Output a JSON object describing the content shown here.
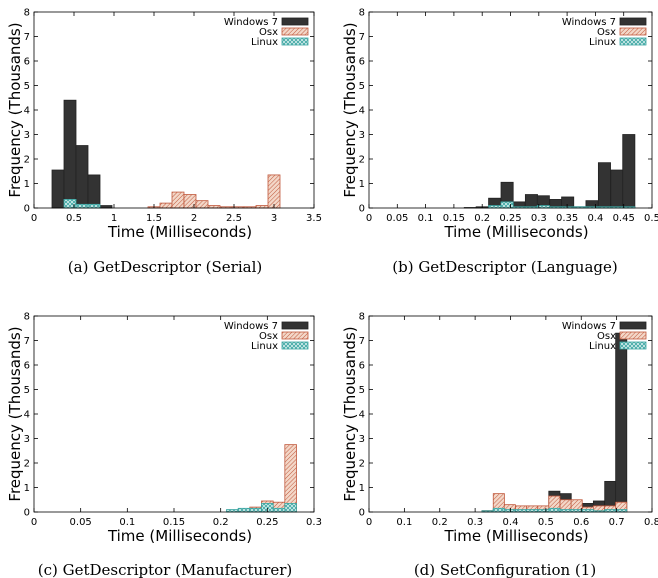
{
  "legend_labels": [
    "Windows 7",
    "Osx",
    "Linux"
  ],
  "colors": {
    "windows": "#333333",
    "osx": "#c0583c",
    "osx_fill": "#f3d7c8",
    "linux": "#3aa5a1",
    "linux_fill": "#d8efee"
  },
  "chart_data": [
    {
      "type": "bar",
      "caption": "(a) GetDescriptor (Serial)",
      "xlabel": "Time (Milliseconds)",
      "ylabel": "Frequency (Thousands)",
      "xlim": [
        0,
        3.5
      ],
      "ylim": [
        0,
        8
      ],
      "xticks": [
        "0",
        "0.5",
        "1",
        "1.5",
        "2",
        "2.5",
        "3",
        "3.5"
      ],
      "yticks": [
        "0",
        "1",
        "2",
        "3",
        "4",
        "5",
        "6",
        "7",
        "8"
      ],
      "legend": "top-right",
      "bin_width": 0.15,
      "series": [
        {
          "name": "Windows 7",
          "x": [
            0.3,
            0.45,
            0.6,
            0.75,
            0.9
          ],
          "values": [
            1.55,
            4.4,
            2.55,
            1.35,
            0.1
          ]
        },
        {
          "name": "Osx",
          "x": [
            1.5,
            1.65,
            1.8,
            1.95,
            2.1,
            2.25,
            2.4,
            2.55,
            2.7,
            2.85,
            3.0
          ],
          "values": [
            0.05,
            0.2,
            0.65,
            0.55,
            0.3,
            0.1,
            0.05,
            0.05,
            0.05,
            0.1,
            1.35
          ]
        },
        {
          "name": "Linux",
          "x": [
            0.45,
            0.6,
            0.75
          ],
          "values": [
            0.35,
            0.15,
            0.15
          ]
        }
      ]
    },
    {
      "type": "bar",
      "caption": "(b) GetDescriptor (Language)",
      "xlabel": "Time (Milliseconds)",
      "ylabel": "Frequency (Thousands)",
      "xlim": [
        0,
        0.5
      ],
      "ylim": [
        0,
        8
      ],
      "xticks": [
        "0",
        "0.05",
        "0.1",
        "0.15",
        "0.2",
        "0.25",
        "0.3",
        "0.35",
        "0.4",
        "0.45",
        "0.5"
      ],
      "yticks": [
        "0",
        "1",
        "2",
        "3",
        "4",
        "5",
        "6",
        "7",
        "8"
      ],
      "legend": "top-right",
      "bin_width": 0.0215,
      "series": [
        {
          "name": "Windows 7",
          "x": [
            0.179,
            0.2,
            0.222,
            0.244,
            0.265,
            0.287,
            0.308,
            0.33,
            0.351,
            0.373,
            0.394,
            0.416,
            0.438,
            0.459
          ],
          "values": [
            0.02,
            0.05,
            0.4,
            1.05,
            0.25,
            0.55,
            0.5,
            0.35,
            0.45,
            0.05,
            0.3,
            1.85,
            1.55,
            3.0
          ]
        },
        {
          "name": "Osx",
          "x": [],
          "values": []
        },
        {
          "name": "Linux",
          "x": [
            0.222,
            0.244,
            0.265,
            0.287,
            0.308,
            0.33,
            0.351,
            0.373,
            0.394,
            0.416,
            0.438,
            0.459
          ],
          "values": [
            0.1,
            0.25,
            0.05,
            0.05,
            0.1,
            0.05,
            0.05,
            0.05,
            0.05,
            0.05,
            0.05,
            0.05
          ]
        }
      ]
    },
    {
      "type": "bar",
      "caption": "(c) GetDescriptor (Manufacturer)",
      "xlabel": "Time (Milliseconds)",
      "ylabel": "Frequency (Thousands)",
      "xlim": [
        0,
        0.3
      ],
      "ylim": [
        0,
        8
      ],
      "xticks": [
        "0",
        "0.05",
        "0.1",
        "0.15",
        "0.2",
        "0.25",
        "0.3"
      ],
      "yticks": [
        "0",
        "1",
        "2",
        "3",
        "4",
        "5",
        "6",
        "7",
        "8"
      ],
      "legend": "top-right",
      "bin_width": 0.0125,
      "series": [
        {
          "name": "Windows 7",
          "x": [],
          "values": []
        },
        {
          "name": "Osx",
          "x": [
            0.225,
            0.2375,
            0.25,
            0.2625,
            0.275
          ],
          "values": [
            0.05,
            0.2,
            0.45,
            0.4,
            2.75
          ]
        },
        {
          "name": "Linux",
          "x": [
            0.2125,
            0.225,
            0.2375,
            0.25,
            0.2625,
            0.275
          ],
          "values": [
            0.1,
            0.15,
            0.15,
            0.35,
            0.15,
            0.35
          ]
        }
      ]
    },
    {
      "type": "bar",
      "caption": "(d) SetConfiguration (1)",
      "xlabel": "Time (Milliseconds)",
      "ylabel": "Frequency (Thousands)",
      "xlim": [
        0,
        0.8
      ],
      "ylim": [
        0,
        8
      ],
      "xticks": [
        "0",
        "0.1",
        "0.2",
        "0.3",
        "0.4",
        "0.5",
        "0.6",
        "0.7",
        "0.8"
      ],
      "yticks": [
        "0",
        "1",
        "2",
        "3",
        "4",
        "5",
        "6",
        "7",
        "8"
      ],
      "legend": "top-right",
      "bin_width": 0.0315,
      "series": [
        {
          "name": "Windows 7",
          "x": [
            0.335,
            0.367,
            0.398,
            0.43,
            0.461,
            0.493,
            0.524,
            0.556,
            0.587,
            0.619,
            0.65,
            0.682,
            0.713
          ],
          "values": [
            0.05,
            0.1,
            0.1,
            0.05,
            0.05,
            0.1,
            0.85,
            0.75,
            0.35,
            0.35,
            0.45,
            1.25,
            7.3
          ]
        },
        {
          "name": "Osx",
          "x": [
            0.335,
            0.367,
            0.398,
            0.43,
            0.461,
            0.493,
            0.524,
            0.556,
            0.587,
            0.619,
            0.65,
            0.682,
            0.713
          ],
          "values": [
            0.05,
            0.75,
            0.3,
            0.25,
            0.25,
            0.25,
            0.65,
            0.5,
            0.5,
            0.2,
            0.25,
            0.25,
            0.4
          ]
        },
        {
          "name": "Linux",
          "x": [
            0.335,
            0.367,
            0.398,
            0.43,
            0.461,
            0.493,
            0.524,
            0.556,
            0.587,
            0.619,
            0.65,
            0.682,
            0.713
          ],
          "values": [
            0.05,
            0.15,
            0.1,
            0.1,
            0.1,
            0.1,
            0.15,
            0.1,
            0.1,
            0.1,
            0.05,
            0.1,
            0.1
          ]
        }
      ]
    }
  ]
}
